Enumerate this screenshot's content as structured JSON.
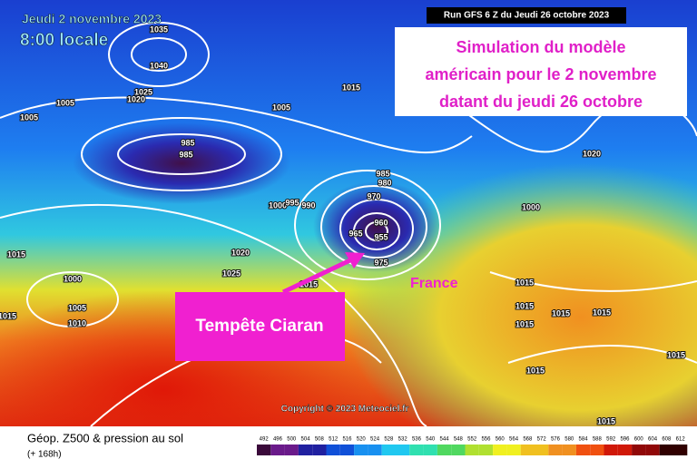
{
  "header": {
    "date": "Jeudi 2 novembre 2023",
    "time": "8:00 locale",
    "run": "Run GFS 6 Z du Jeudi 26 octobre 2023"
  },
  "annotation": {
    "lines": [
      "Simulation du modèle",
      "américain pour le 2 novembre",
      "datant du jeudi 26 octobre"
    ]
  },
  "storm_label": "Tempête Ciaran",
  "country_label": "France",
  "copyright": "Copyright © 2023 Meteociel.fr",
  "legend": {
    "title": "Géop. Z500 & pression au sol",
    "subtitle": "(+ 168h)",
    "ticks": [
      492,
      496,
      500,
      504,
      508,
      512,
      516,
      520,
      524,
      528,
      532,
      536,
      540,
      544,
      548,
      552,
      556,
      560,
      564,
      568,
      572,
      576,
      580,
      584,
      588,
      592,
      596,
      600,
      604,
      608,
      612
    ]
  },
  "isobars": [
    1035,
    1040,
    1025,
    1020,
    1005,
    1005,
    1015,
    1005,
    985,
    985,
    985,
    980,
    970,
    1000,
    995,
    990,
    960,
    965,
    955,
    975,
    1020,
    1000,
    1015,
    1020,
    1025,
    1000,
    1015,
    1005,
    1015,
    1010,
    1015,
    1015,
    1015,
    1015,
    1015,
    1015,
    1015,
    1015
  ]
}
